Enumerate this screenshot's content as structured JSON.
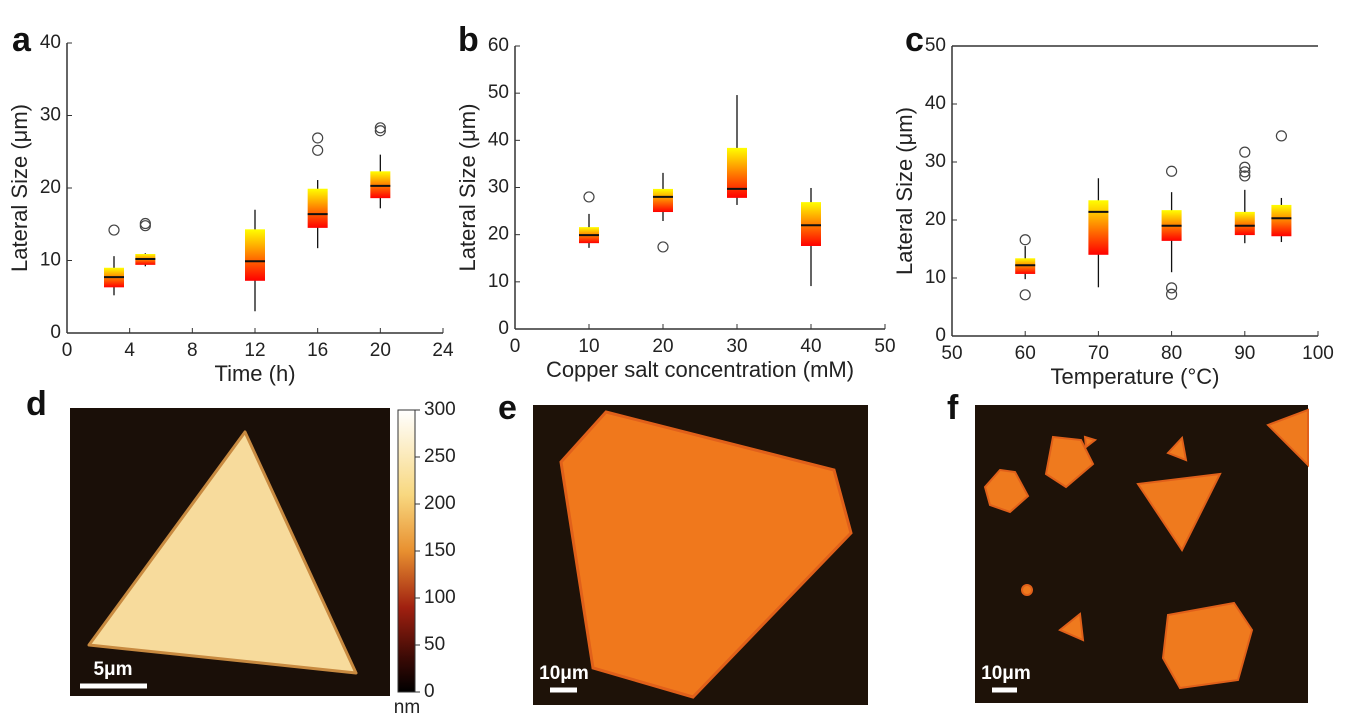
{
  "chart_data": [
    {
      "type": "box",
      "x_label": "Time (h)",
      "y_label": "Lateral Size (μm)",
      "xlim": [
        0,
        24
      ],
      "xticks": [
        0,
        4,
        8,
        12,
        16,
        20,
        24
      ],
      "ylim": [
        0,
        40
      ],
      "yticks": [
        0,
        10,
        20,
        30,
        40
      ],
      "box_colors": [
        "#ffff00",
        "#ff0000"
      ],
      "x": [
        3,
        5,
        12,
        16,
        20
      ],
      "boxes": [
        {
          "whislo": 5.2,
          "q1": 6.3,
          "med": 7.7,
          "q3": 9.0,
          "whishi": 10.6,
          "fliers": [
            14.2
          ]
        },
        {
          "whislo": 9.2,
          "q1": 9.4,
          "med": 10.2,
          "q3": 10.9,
          "whishi": 11.0,
          "fliers": [
            14.8,
            15.1
          ]
        },
        {
          "whislo": 3.0,
          "q1": 7.2,
          "med": 9.9,
          "q3": 14.3,
          "whishi": 17.0,
          "fliers": []
        },
        {
          "whislo": 11.7,
          "q1": 14.5,
          "med": 16.4,
          "q3": 19.9,
          "whishi": 21.1,
          "fliers": [
            25.2,
            26.9
          ]
        },
        {
          "whislo": 17.2,
          "q1": 18.6,
          "med": 20.3,
          "q3": 22.3,
          "whishi": 24.6,
          "fliers": [
            27.9,
            28.3
          ]
        }
      ]
    },
    {
      "type": "box",
      "x_label": "Copper salt concentration (mM)",
      "y_label": "Lateral Size (μm)",
      "xlim": [
        0,
        50
      ],
      "xticks": [
        0,
        10,
        20,
        30,
        40,
        50
      ],
      "ylim": [
        0,
        60
      ],
      "yticks": [
        0,
        10,
        20,
        30,
        40,
        50,
        60
      ],
      "box_colors": [
        "#ffff00",
        "#ff0000"
      ],
      "x": [
        10,
        20,
        30,
        40
      ],
      "boxes": [
        {
          "whislo": 17.2,
          "q1": 18.2,
          "med": 19.9,
          "q3": 21.6,
          "whishi": 24.4,
          "fliers": [
            28.0
          ]
        },
        {
          "whislo": 22.9,
          "q1": 24.8,
          "med": 28.0,
          "q3": 29.7,
          "whishi": 33.1,
          "fliers": [
            17.4
          ]
        },
        {
          "whislo": 26.3,
          "q1": 27.8,
          "med": 29.7,
          "q3": 38.4,
          "whishi": 49.6,
          "fliers": []
        },
        {
          "whislo": 9.1,
          "q1": 17.6,
          "med": 22.0,
          "q3": 26.9,
          "whishi": 29.9,
          "fliers": []
        }
      ]
    },
    {
      "type": "box",
      "x_label": "Temperature (°C)",
      "y_label": "Lateral Size (μm)",
      "xlim": [
        50,
        100
      ],
      "xticks": [
        50,
        60,
        70,
        80,
        90,
        100
      ],
      "ylim": [
        0,
        50
      ],
      "yticks": [
        0,
        10,
        20,
        30,
        40,
        50
      ],
      "box_colors": [
        "#ffff00",
        "#ff0000"
      ],
      "x": [
        60,
        70,
        80,
        90,
        95
      ],
      "boxes": [
        {
          "whislo": 9.8,
          "q1": 10.7,
          "med": 12.2,
          "q3": 13.4,
          "whishi": 15.5,
          "fliers": [
            16.6,
            7.1
          ]
        },
        {
          "whislo": 8.4,
          "q1": 14.0,
          "med": 21.4,
          "q3": 23.4,
          "whishi": 27.2,
          "fliers": []
        },
        {
          "whislo": 11.0,
          "q1": 16.4,
          "med": 19.0,
          "q3": 21.7,
          "whishi": 24.8,
          "fliers": [
            28.4,
            8.3,
            7.2
          ]
        },
        {
          "whislo": 16.0,
          "q1": 17.4,
          "med": 19.0,
          "q3": 21.4,
          "whishi": 25.2,
          "fliers": [
            31.7,
            29.1,
            28.3,
            27.6
          ]
        },
        {
          "whislo": 16.2,
          "q1": 17.2,
          "med": 20.3,
          "q3": 22.6,
          "whishi": 23.8,
          "fliers": [
            34.5
          ]
        }
      ]
    }
  ],
  "panel_labels": [
    "a",
    "b",
    "c",
    "d",
    "e",
    "f"
  ],
  "afm_image": {
    "colorbar_ticks": [
      0,
      50,
      100,
      150,
      200,
      250,
      300
    ],
    "colorbar_unit": "nm",
    "scale_bar": "5μm"
  },
  "optical_images": [
    {
      "scale_bar": "10μm"
    },
    {
      "scale_bar": "10μm"
    }
  ]
}
